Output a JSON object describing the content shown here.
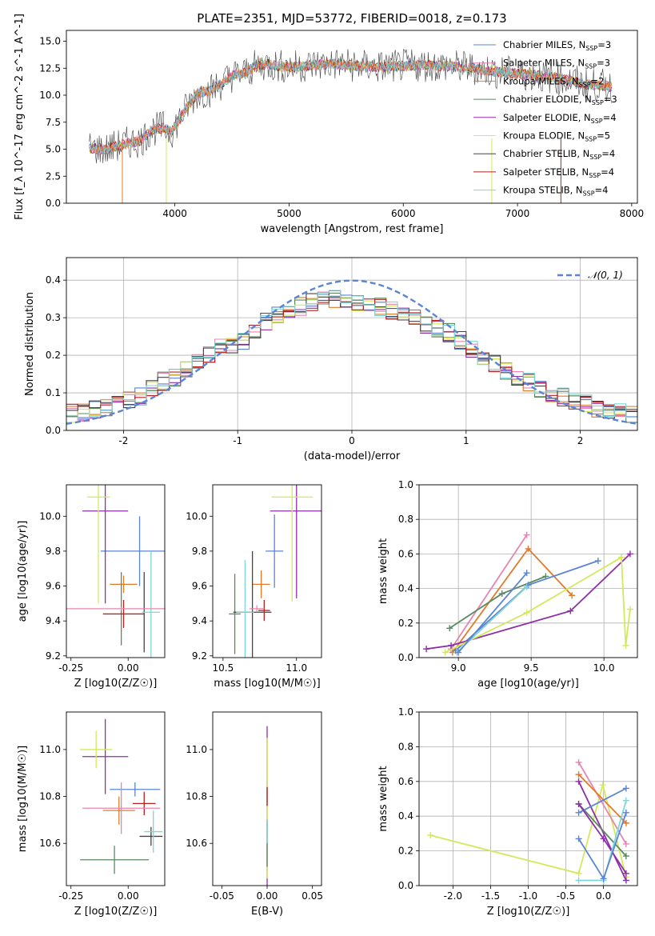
{
  "colors": {
    "c1": "#5b84d4",
    "c2": "#e07b2a",
    "c3": "#5a8a60",
    "c4": "#8e2fa8",
    "c5": "#d4e85a",
    "c6": "#444444",
    "c7": "#b81f1f",
    "c8": "#7fd6d6",
    "c9": "#e884b0",
    "normal": "#5b84d4",
    "spectrum": "#7f7f7f"
  },
  "chart_data": [
    {
      "id": "spectrum",
      "type": "line",
      "title": "PLATE=2351, MJD=53772, FIBERID=0018, z=0.173",
      "xlabel": "wavelength [Angstrom, rest frame]",
      "ylabel": "Flux [f_λ 10^-17 erg cm^-2 s^-1 A^-1]",
      "xlim": [
        3050,
        8050
      ],
      "ylim": [
        0,
        16
      ],
      "xticks": [
        4000,
        5000,
        6000,
        7000,
        8000
      ],
      "yticks": [
        0.0,
        2.5,
        5.0,
        7.5,
        10.0,
        12.5,
        15.0
      ],
      "legend_loc": "right",
      "x": [
        3250,
        3400,
        3600,
        3700,
        3800,
        3900,
        3970,
        4100,
        4200,
        4300,
        4400,
        4500,
        4600,
        4700,
        4800,
        4900,
        5000,
        5200,
        5400,
        5600,
        5800,
        6000,
        6200,
        6400,
        6600,
        6800,
        7000,
        7200,
        7400,
        7600,
        7800
      ],
      "y": [
        5.1,
        5.0,
        5.6,
        5.8,
        6.8,
        7.0,
        6.6,
        8.8,
        10.2,
        10.4,
        11.0,
        11.8,
        12.0,
        12.6,
        12.9,
        12.7,
        12.6,
        12.8,
        12.9,
        12.7,
        12.6,
        12.7,
        12.8,
        12.7,
        12.5,
        12.2,
        12.0,
        11.8,
        11.5,
        11.0,
        10.8
      ],
      "series": [
        {
          "name": "Chabrier MILES",
          "nssp": "3",
          "color": "#5b84d4"
        },
        {
          "name": "Salpeter MILES",
          "nssp": "3",
          "color": "#e884b0"
        },
        {
          "name": "Kroupa MILES",
          "nssp": "2",
          "color": "#e07b2a"
        },
        {
          "name": "Chabrier ELODIE",
          "nssp": "3",
          "color": "#5a8a60"
        },
        {
          "name": "Salpeter ELODIE",
          "nssp": "4",
          "color": "#8e2fa8"
        },
        {
          "name": "Kroupa ELODIE",
          "nssp": "5",
          "color": "#d4e85a"
        },
        {
          "name": "Chabrier STELIB",
          "nssp": "4",
          "color": "#444444"
        },
        {
          "name": "Salpeter STELIB",
          "nssp": "4",
          "color": "#b81f1f"
        },
        {
          "name": "Kroupa STELIB",
          "nssp": "4",
          "color": "#7fd6d6"
        }
      ]
    },
    {
      "id": "residuals",
      "type": "line",
      "xlabel": "(data-model)/error",
      "ylabel": "Normed distribution",
      "xlim": [
        -2.5,
        2.5
      ],
      "ylim": [
        0,
        0.46
      ],
      "xticks": [
        -2,
        -1,
        0,
        1,
        2
      ],
      "yticks": [
        0.0,
        0.1,
        0.2,
        0.3,
        0.4
      ],
      "grid": true,
      "legend": "𝒩(0, 1)",
      "bins": [
        -2.45,
        -2.35,
        -2.25,
        -2.15,
        -2.05,
        -1.95,
        -1.85,
        -1.75,
        -1.65,
        -1.55,
        -1.45,
        -1.35,
        -1.25,
        -1.15,
        -1.05,
        -0.95,
        -0.85,
        -0.75,
        -0.65,
        -0.55,
        -0.45,
        -0.35,
        -0.25,
        -0.15,
        -0.05,
        0.05,
        0.15,
        0.25,
        0.35,
        0.45,
        0.55,
        0.65,
        0.75,
        0.85,
        0.95,
        1.05,
        1.15,
        1.25,
        1.35,
        1.45,
        1.55,
        1.65,
        1.75,
        1.85,
        1.95,
        2.05,
        2.15,
        2.25,
        2.35,
        2.45
      ],
      "hist_mean": [
        0.045,
        0.048,
        0.055,
        0.06,
        0.07,
        0.08,
        0.09,
        0.11,
        0.13,
        0.14,
        0.16,
        0.18,
        0.2,
        0.22,
        0.23,
        0.24,
        0.26,
        0.29,
        0.31,
        0.32,
        0.33,
        0.34,
        0.345,
        0.35,
        0.345,
        0.34,
        0.33,
        0.33,
        0.32,
        0.31,
        0.3,
        0.28,
        0.27,
        0.26,
        0.24,
        0.22,
        0.2,
        0.18,
        0.16,
        0.14,
        0.13,
        0.11,
        0.1,
        0.09,
        0.08,
        0.07,
        0.06,
        0.055,
        0.05,
        0.045
      ],
      "normal_curve": {
        "mu": 0,
        "sigma": 1
      }
    },
    {
      "id": "age-vs-z",
      "type": "scatter",
      "xlabel": "Z [log10(Z/Z☉)]",
      "ylabel": "age [log10(age/yr)]",
      "xlim": [
        -0.27,
        0.16
      ],
      "ylim": [
        9.19,
        10.18
      ],
      "xticks": [
        -0.25,
        0.0
      ],
      "yticks": [
        9.2,
        9.4,
        9.6,
        9.8,
        10.0
      ],
      "points": [
        {
          "x": 0.05,
          "xerr": [
            0.17,
            0.17
          ],
          "y": 9.8,
          "yerr": [
            0.2,
            0.2
          ],
          "color": "#5b84d4"
        },
        {
          "x": -0.02,
          "xerr": [
            0.06,
            0.06
          ],
          "y": 9.61,
          "yerr": [
            0.05,
            0.05
          ],
          "color": "#e07b2a"
        },
        {
          "x": -0.03,
          "xerr": [
            0.0,
            0.0
          ],
          "y": 9.47,
          "yerr": [
            0.21,
            0.21
          ],
          "color": "#5a8a60"
        },
        {
          "x": -0.1,
          "xerr": [
            0.1,
            0.1
          ],
          "y": 10.03,
          "yerr": [
            0.53,
            0.53
          ],
          "color": "#8e2fa8"
        },
        {
          "x": -0.13,
          "xerr": [
            0.05,
            0.05
          ],
          "y": 10.11,
          "yerr": [
            0.61,
            0.61
          ],
          "color": "#d4e85a"
        },
        {
          "x": 0.07,
          "xerr": [
            0.0,
            0.0
          ],
          "y": 9.45,
          "yerr": [
            0.23,
            0.23
          ],
          "color": "#444444"
        },
        {
          "x": -0.02,
          "xerr": [
            0.09,
            0.09
          ],
          "y": 9.44,
          "yerr": [
            0.08,
            0.08
          ],
          "color": "#b81f1f"
        },
        {
          "x": 0.1,
          "xerr": [
            0.04,
            0.04
          ],
          "y": 9.45,
          "yerr": [
            0.35,
            0.35
          ],
          "color": "#7fd6d6"
        },
        {
          "x": -0.03,
          "xerr": [
            0.25,
            0.25
          ],
          "y": 9.47,
          "yerr": [
            0.01,
            0.01
          ],
          "color": "#e884b0"
        }
      ]
    },
    {
      "id": "age-vs-mass",
      "type": "scatter",
      "xlabel": "mass [log10(M/M☉)]",
      "ylabel": "",
      "xlim": [
        10.43,
        11.17
      ],
      "ylim": [
        9.19,
        10.18
      ],
      "xticks": [
        10.5,
        11.0
      ],
      "yticks": [
        9.2,
        9.4,
        9.6,
        9.8,
        10.0
      ],
      "points": [
        {
          "x": 10.85,
          "xerr": [
            0.06,
            0.06
          ],
          "y": 9.8,
          "yerr": [
            0.21,
            0.21
          ],
          "color": "#5b84d4"
        },
        {
          "x": 10.76,
          "xerr": [
            0.06,
            0.06
          ],
          "y": 9.61,
          "yerr": [
            0.08,
            0.08
          ],
          "color": "#e07b2a"
        },
        {
          "x": 10.58,
          "xerr": [
            0.04,
            0.04
          ],
          "y": 9.44,
          "yerr": [
            0.23,
            0.23
          ],
          "color": "#5a8a60"
        },
        {
          "x": 11.0,
          "xerr": [
            0.18,
            0.18
          ],
          "y": 10.03,
          "yerr": [
            0.5,
            0.5
          ],
          "color": "#8e2fa8"
        },
        {
          "x": 10.97,
          "xerr": [
            0.14,
            0.14
          ],
          "y": 10.11,
          "yerr": [
            0.6,
            0.6
          ],
          "color": "#d4e85a"
        },
        {
          "x": 10.7,
          "xerr": [
            0.13,
            0.13
          ],
          "y": 9.45,
          "yerr": [
            0.35,
            0.35
          ],
          "color": "#444444"
        },
        {
          "x": 10.78,
          "xerr": [
            0.04,
            0.04
          ],
          "y": 9.46,
          "yerr": [
            0.06,
            0.06
          ],
          "color": "#b81f1f"
        },
        {
          "x": 10.65,
          "xerr": [
            0.06,
            0.06
          ],
          "y": 9.45,
          "yerr": [
            0.3,
            0.3
          ],
          "color": "#7fd6d6"
        },
        {
          "x": 10.73,
          "xerr": [
            0.05,
            0.05
          ],
          "y": 9.47,
          "yerr": [
            0.02,
            0.02
          ],
          "color": "#e884b0"
        }
      ]
    },
    {
      "id": "mass-weight-vs-age",
      "type": "line",
      "xlabel": "age [log10(age/yr)]",
      "ylabel": "mass weight",
      "xlim": [
        8.73,
        10.23
      ],
      "ylim": [
        0,
        1
      ],
      "xticks": [
        9.0,
        9.5,
        10.0
      ],
      "yticks": [
        0.0,
        0.2,
        0.4,
        0.6,
        0.8,
        1.0
      ],
      "grid": true,
      "series": [
        {
          "color": "#e884b0",
          "x": [
            8.95,
            9.47
          ],
          "y": [
            0.05,
            0.71
          ]
        },
        {
          "color": "#e07b2a",
          "x": [
            8.96,
            9.48,
            9.78
          ],
          "y": [
            0.03,
            0.63,
            0.36
          ]
        },
        {
          "color": "#5a8a60",
          "x": [
            8.94,
            9.3,
            9.6
          ],
          "y": [
            0.17,
            0.37,
            0.47
          ]
        },
        {
          "color": "#5b84d4",
          "x": [
            8.98,
            9.48,
            9.96
          ],
          "y": [
            0.04,
            0.42,
            0.56
          ]
        },
        {
          "color": "#8e2fa8",
          "x": [
            8.78,
            8.95,
            9.77,
            10.18
          ],
          "y": [
            0.05,
            0.07,
            0.27,
            0.6
          ]
        },
        {
          "color": "#d4e85a",
          "x": [
            8.91,
            9.47,
            10.12,
            10.15,
            10.18
          ],
          "y": [
            0.03,
            0.26,
            0.58,
            0.07,
            0.28
          ]
        },
        {
          "color": "#7fd6d6",
          "x": [
            8.99,
            9.47
          ],
          "y": [
            0.03,
            0.41
          ]
        },
        {
          "color": "#5b84d4",
          "x": [
            9.0,
            9.47
          ],
          "y": [
            0.03,
            0.49
          ]
        }
      ]
    },
    {
      "id": "mass-vs-z",
      "type": "scatter",
      "xlabel": "Z [log10(Z/Z☉)]",
      "ylabel": "mass [log10(M/M☉)]",
      "xlim": [
        -0.27,
        0.16
      ],
      "ylim": [
        10.42,
        11.16
      ],
      "xticks": [
        -0.25,
        0.0
      ],
      "yticks": [
        10.6,
        10.8,
        11.0
      ],
      "points": [
        {
          "x": 0.03,
          "xerr": [
            0.11,
            0.11
          ],
          "y": 10.83,
          "yerr": [
            0.03,
            0.03
          ],
          "color": "#5b84d4"
        },
        {
          "x": -0.04,
          "xerr": [
            0.07,
            0.07
          ],
          "y": 10.74,
          "yerr": [
            0.06,
            0.06
          ],
          "color": "#e07b2a"
        },
        {
          "x": -0.06,
          "xerr": [
            0.15,
            0.15
          ],
          "y": 10.53,
          "yerr": [
            0.06,
            0.06
          ],
          "color": "#5a8a60"
        },
        {
          "x": -0.1,
          "xerr": [
            0.1,
            0.1
          ],
          "y": 10.97,
          "yerr": [
            0.16,
            0.16
          ],
          "color": "#8e2fa8"
        },
        {
          "x": -0.14,
          "xerr": [
            0.07,
            0.07
          ],
          "y": 11.0,
          "yerr": [
            0.08,
            0.08
          ],
          "color": "#d4e85a"
        },
        {
          "x": 0.1,
          "xerr": [
            0.05,
            0.05
          ],
          "y": 10.63,
          "yerr": [
            0.04,
            0.04
          ],
          "color": "#444444"
        },
        {
          "x": 0.07,
          "xerr": [
            0.05,
            0.05
          ],
          "y": 10.77,
          "yerr": [
            0.05,
            0.05
          ],
          "color": "#b81f1f"
        },
        {
          "x": 0.11,
          "xerr": [
            0.04,
            0.04
          ],
          "y": 10.65,
          "yerr": [
            0.09,
            0.09
          ],
          "color": "#7fd6d6"
        },
        {
          "x": -0.03,
          "xerr": [
            0.17,
            0.17
          ],
          "y": 10.75,
          "yerr": [
            0.11,
            0.11
          ],
          "color": "#e884b0"
        }
      ]
    },
    {
      "id": "mass-vs-ebv",
      "type": "scatter",
      "xlabel": "E(B-V)",
      "ylabel": "",
      "xlim": [
        -0.06,
        0.06
      ],
      "ylim": [
        10.42,
        11.16
      ],
      "xticks": [
        -0.05,
        0.0,
        0.05
      ],
      "yticks": [
        10.6,
        10.8,
        11.0
      ],
      "points": [
        {
          "x": 0,
          "xerr": [
            0,
            0
          ],
          "y": 10.75,
          "yerr": [
            0.35,
            0.35
          ],
          "color": "#8e2fa8"
        },
        {
          "x": 0,
          "xerr": [
            0,
            0
          ],
          "y": 10.75,
          "yerr": [
            0.3,
            0.3
          ],
          "color": "#d4e85a"
        },
        {
          "x": 0,
          "xerr": [
            0,
            0
          ],
          "y": 10.6,
          "yerr": [
            0.1,
            0.1
          ],
          "color": "#5a8a60"
        },
        {
          "x": 0,
          "xerr": [
            0,
            0
          ],
          "y": 10.8,
          "yerr": [
            0.04,
            0.04
          ],
          "color": "#b81f1f"
        },
        {
          "x": 0,
          "xerr": [
            0,
            0
          ],
          "y": 10.65,
          "yerr": [
            0.05,
            0.05
          ],
          "color": "#7fd6d6"
        }
      ]
    },
    {
      "id": "mass-weight-vs-z",
      "type": "line",
      "xlabel": "Z [log10(Z/Z☉)]",
      "ylabel": "mass weight",
      "xlim": [
        -2.45,
        0.45
      ],
      "ylim": [
        0,
        1
      ],
      "xticks": [
        -2.0,
        -1.5,
        -1.0,
        -0.5,
        0.0
      ],
      "yticks": [
        0.0,
        0.2,
        0.4,
        0.6,
        0.8,
        1.0
      ],
      "grid": true,
      "series": [
        {
          "color": "#d4e85a",
          "x": [
            -2.3,
            -0.33,
            -0.01,
            0.3
          ],
          "y": [
            0.29,
            0.07,
            0.58,
            0.05
          ]
        },
        {
          "color": "#e884b0",
          "x": [
            -0.33,
            0.3
          ],
          "y": [
            0.71,
            0.24
          ]
        },
        {
          "color": "#e07b2a",
          "x": [
            -0.33,
            0.3
          ],
          "y": [
            0.64,
            0.36
          ]
        },
        {
          "color": "#8e2fa8",
          "x": [
            -0.33,
            0.3
          ],
          "y": [
            0.6,
            0.03
          ]
        },
        {
          "color": "#5a8a60",
          "x": [
            -0.33,
            0.3
          ],
          "y": [
            0.47,
            0.17
          ]
        },
        {
          "color": "#5b84d4",
          "x": [
            -0.33,
            0.3
          ],
          "y": [
            0.42,
            0.56
          ]
        },
        {
          "color": "#8e2fa8",
          "x": [
            -0.33,
            0.0,
            0.3
          ],
          "y": [
            0.47,
            0.27,
            0.07
          ]
        },
        {
          "color": "#7fd6d6",
          "x": [
            -0.33,
            0.0,
            0.3
          ],
          "y": [
            0.03,
            0.03,
            0.49
          ]
        },
        {
          "color": "#5b84d4",
          "x": [
            -0.33,
            0.0,
            0.3
          ],
          "y": [
            0.27,
            0.04,
            0.42
          ]
        }
      ]
    }
  ]
}
